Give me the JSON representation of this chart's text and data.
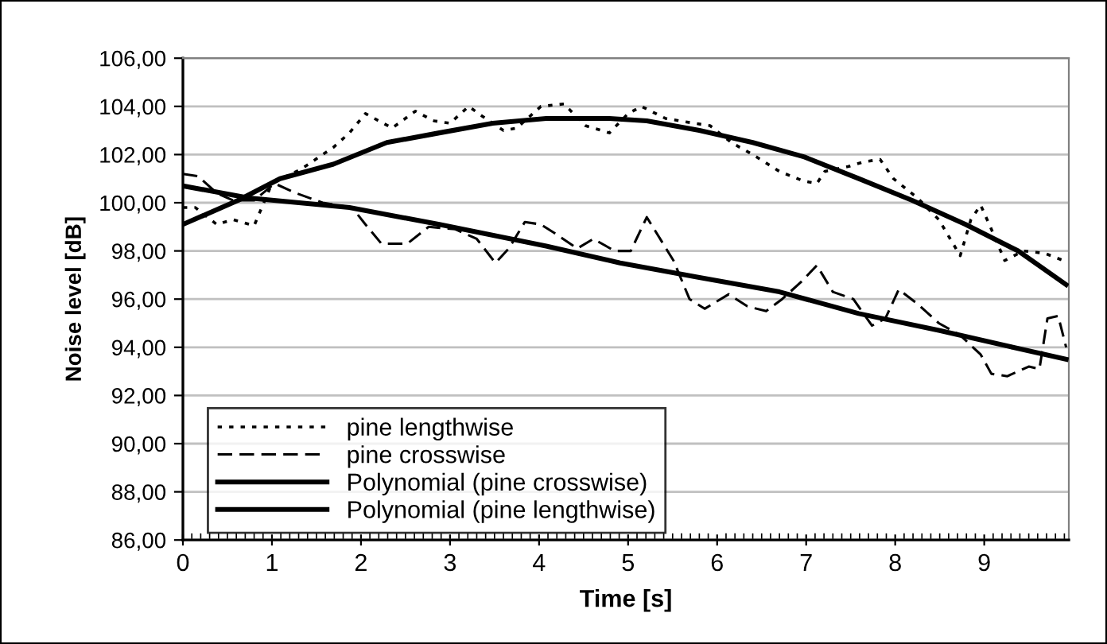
{
  "chart_data": {
    "type": "line",
    "xlabel": "Time [s]",
    "ylabel": "Noise level [dB]",
    "xlim": [
      0,
      9.95
    ],
    "xticks": [
      0,
      1,
      2,
      3,
      4,
      5,
      6,
      7,
      8,
      9
    ],
    "ylim": [
      86,
      106
    ],
    "yticks": [
      {
        "value": 86,
        "label": "86,00"
      },
      {
        "value": 88,
        "label": "88,00"
      },
      {
        "value": 90,
        "label": "90,00"
      },
      {
        "value": 92,
        "label": "92,00"
      },
      {
        "value": 94,
        "label": "94,00"
      },
      {
        "value": 96,
        "label": "96,00"
      },
      {
        "value": 98,
        "label": "98,00"
      },
      {
        "value": 100,
        "label": "100,00"
      },
      {
        "value": 102,
        "label": "102,00"
      },
      {
        "value": 104,
        "label": "104,00"
      },
      {
        "value": 106,
        "label": "106,00"
      }
    ],
    "grid": "y",
    "legend": "bottom left",
    "marker": "none",
    "series": [
      {
        "name": "pine lengthwise",
        "color": "#000000",
        "line_style": "dotted",
        "x": [
          0,
          0.14,
          0.38,
          0.56,
          0.8,
          1.0,
          1.33,
          1.69,
          1.87,
          2.05,
          2.35,
          2.61,
          2.82,
          3.0,
          3.21,
          3.36,
          3.6,
          3.75,
          4.02,
          4.28,
          4.52,
          4.79,
          5.0,
          5.15,
          5.42,
          5.74,
          5.92,
          6.16,
          6.4,
          6.7,
          6.97,
          7.12,
          7.21,
          7.47,
          7.65,
          7.83,
          7.98,
          8.25,
          8.49,
          8.73,
          8.85,
          8.96,
          9.08,
          9.23,
          9.44,
          9.68,
          9.89
        ],
        "values": [
          99.8,
          99.8,
          99.1,
          99.3,
          99.05,
          100.8,
          101.4,
          102.3,
          102.9,
          103.7,
          103.1,
          103.8,
          103.4,
          103.3,
          104.0,
          103.6,
          103.0,
          103.1,
          104.0,
          104.1,
          103.2,
          102.9,
          103.7,
          104.0,
          103.5,
          103.3,
          103.2,
          102.5,
          102.0,
          101.3,
          100.9,
          100.8,
          101.3,
          101.5,
          101.7,
          101.8,
          101.0,
          100.2,
          99.3,
          97.8,
          99.3,
          99.9,
          98.9,
          97.6,
          98.0,
          97.9,
          97.6
        ]
      },
      {
        "name": "pine crosswise",
        "color": "#000000",
        "line_style": "dashed",
        "x": [
          0,
          0.17,
          0.38,
          0.56,
          0.8,
          1.03,
          1.27,
          1.57,
          1.9,
          2.05,
          2.23,
          2.52,
          2.76,
          3.06,
          3.3,
          3.51,
          3.66,
          3.84,
          4.02,
          4.19,
          4.43,
          4.61,
          4.85,
          5.03,
          5.21,
          5.51,
          5.69,
          5.86,
          6.13,
          6.34,
          6.55,
          6.73,
          6.94,
          7.12,
          7.3,
          7.53,
          7.74,
          7.89,
          8.04,
          8.25,
          8.49,
          8.73,
          8.96,
          9.08,
          9.26,
          9.5,
          9.62,
          9.71,
          9.83,
          9.92
        ],
        "values": [
          101.2,
          101.1,
          100.4,
          100.1,
          100.1,
          100.8,
          100.4,
          100.0,
          99.8,
          99.1,
          98.3,
          98.3,
          99.0,
          98.9,
          98.5,
          97.5,
          98.1,
          99.2,
          99.1,
          98.7,
          98.1,
          98.5,
          98.0,
          98.0,
          99.4,
          97.6,
          96.0,
          95.6,
          96.2,
          95.7,
          95.5,
          96.0,
          96.7,
          97.4,
          96.3,
          96.0,
          94.9,
          95.2,
          96.4,
          95.8,
          95.0,
          94.5,
          93.7,
          92.9,
          92.8,
          93.2,
          93.1,
          95.2,
          95.3,
          94.0
        ]
      },
      {
        "name": "Polynomial (pine crosswise)",
        "color": "#000000",
        "line_style": "solid",
        "x": [
          0,
          0.74,
          1.87,
          2.88,
          4.08,
          4.91,
          5.8,
          6.7,
          7.59,
          8.49,
          9.32,
          9.92
        ],
        "values": [
          100.7,
          100.2,
          99.8,
          99.1,
          98.2,
          97.5,
          96.9,
          96.3,
          95.4,
          94.7,
          94.0,
          93.5
        ]
      },
      {
        "name": "Polynomial (pine lengthwise)",
        "color": "#000000",
        "line_style": "solid",
        "x": [
          0,
          0.62,
          1.09,
          1.69,
          2.29,
          2.88,
          3.48,
          4.08,
          4.79,
          5.21,
          5.8,
          6.4,
          6.98,
          7.59,
          8.19,
          8.79,
          9.38,
          9.92
        ],
        "values": [
          99.1,
          100.1,
          101.0,
          101.6,
          102.5,
          102.9,
          103.3,
          103.5,
          103.5,
          103.4,
          103.0,
          102.5,
          101.9,
          101.0,
          100.1,
          99.1,
          98.0,
          96.6
        ]
      }
    ]
  }
}
